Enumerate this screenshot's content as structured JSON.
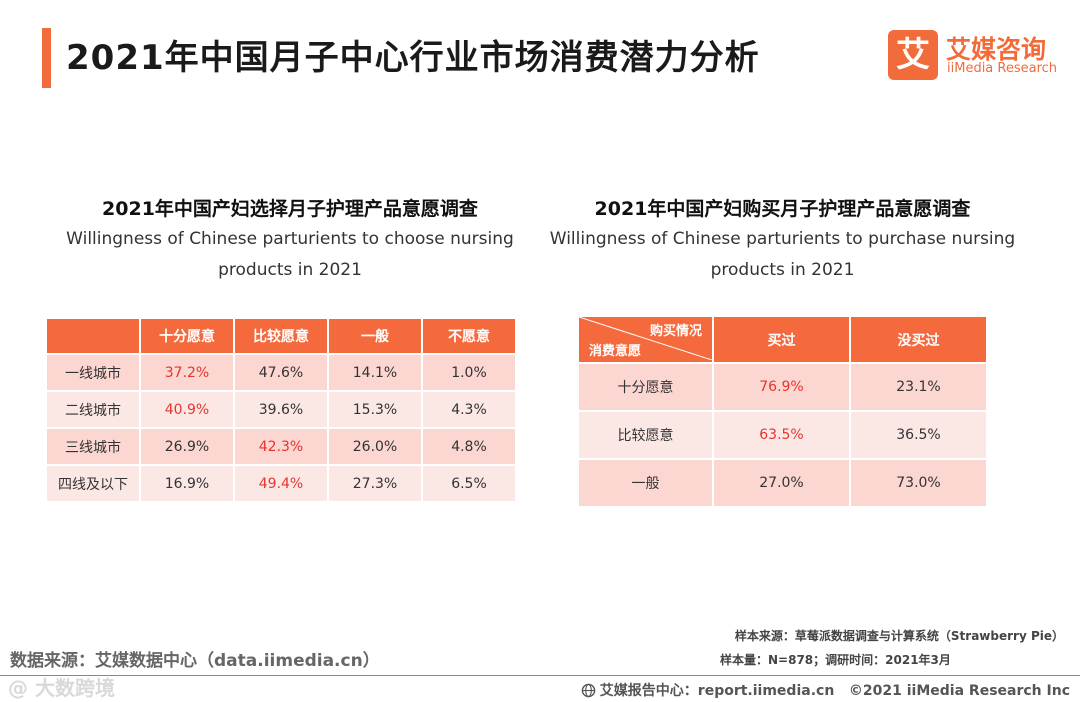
{
  "header": {
    "title": "2021年中国月子中心行业市场消费潜力分析",
    "logo_char": "艾",
    "logo_cn": "艾媒咨询",
    "logo_en": "iiMedia Research"
  },
  "left_panel": {
    "title": "2021年中国产妇选择月子护理产品意愿调查",
    "subtitle": "Willingness of Chinese parturients to choose nursing products in 2021",
    "columns": [
      "",
      "十分愿意",
      "比较愿意",
      "一般",
      "不愿意"
    ],
    "rows": [
      {
        "label": "一线城市",
        "values": [
          "37.2%",
          "47.6%",
          "14.1%",
          "1.0%"
        ]
      },
      {
        "label": "二线城市",
        "values": [
          "40.9%",
          "39.6%",
          "15.3%",
          "4.3%"
        ]
      },
      {
        "label": "三线城市",
        "values": [
          "26.9%",
          "42.3%",
          "26.0%",
          "4.8%"
        ]
      },
      {
        "label": "四线及以下",
        "values": [
          "16.9%",
          "49.4%",
          "27.3%",
          "6.5%"
        ]
      }
    ]
  },
  "right_panel": {
    "title": "2021年中国产妇购买月子护理产品意愿调查",
    "subtitle": "Willingness of Chinese parturients to purchase nursing products in 2021",
    "corner_top": "购买情况",
    "corner_bottom": "消费意愿",
    "columns": [
      "买过",
      "没买过"
    ],
    "rows": [
      {
        "label": "十分愿意",
        "values": [
          "76.9%",
          "23.1%"
        ]
      },
      {
        "label": "比较愿意",
        "values": [
          "63.5%",
          "36.5%"
        ]
      },
      {
        "label": "一般",
        "values": [
          "27.0%",
          "73.0%"
        ]
      }
    ]
  },
  "footer": {
    "data_source": "数据来源：艾媒数据中心（data.iimedia.cn）",
    "watermark": "@ 大数跨境",
    "sample_source": "样本来源：草莓派数据调查与计算系统（Strawberry Pie）",
    "sample_size": "样本量：N=878；调研时间：2021年3月",
    "report_center": "艾媒报告中心：report.iimedia.cn",
    "copyright": "©2021  iiMedia Research  Inc"
  },
  "colors": {
    "accent": "#f46a3d",
    "highlight_text": "#e8342f",
    "row_odd": "#fcd6d0",
    "row_even": "#fbe8e5"
  }
}
